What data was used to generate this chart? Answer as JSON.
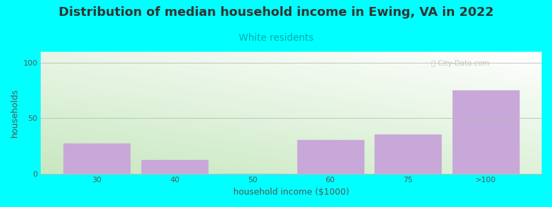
{
  "title": "Distribution of median household income in Ewing, VA in 2022",
  "subtitle": "White residents",
  "xlabel": "household income ($1000)",
  "ylabel": "households",
  "categories": [
    "30",
    "40",
    "50",
    "60",
    "75",
    ">100"
  ],
  "values": [
    27,
    12,
    0,
    30,
    35,
    75
  ],
  "bar_color": "#C8A8D8",
  "background_color": "#00FFFF",
  "plot_bg_color_topleft": "#C8E8C0",
  "plot_bg_color_topright": "#FFFFFF",
  "plot_bg_color_bottomleft": "#C8E8C0",
  "plot_bg_color_bottomright": "#FFFFFF",
  "title_color": "#333333",
  "subtitle_color": "#00AAAA",
  "axis_label_color": "#555555",
  "tick_color": "#555555",
  "grid_color": "#BBBBBB",
  "ylim": [
    0,
    110
  ],
  "yticks": [
    0,
    50,
    100
  ],
  "title_fontsize": 13,
  "subtitle_fontsize": 10,
  "label_fontsize": 9,
  "tick_fontsize": 8,
  "bar_width": 0.85
}
